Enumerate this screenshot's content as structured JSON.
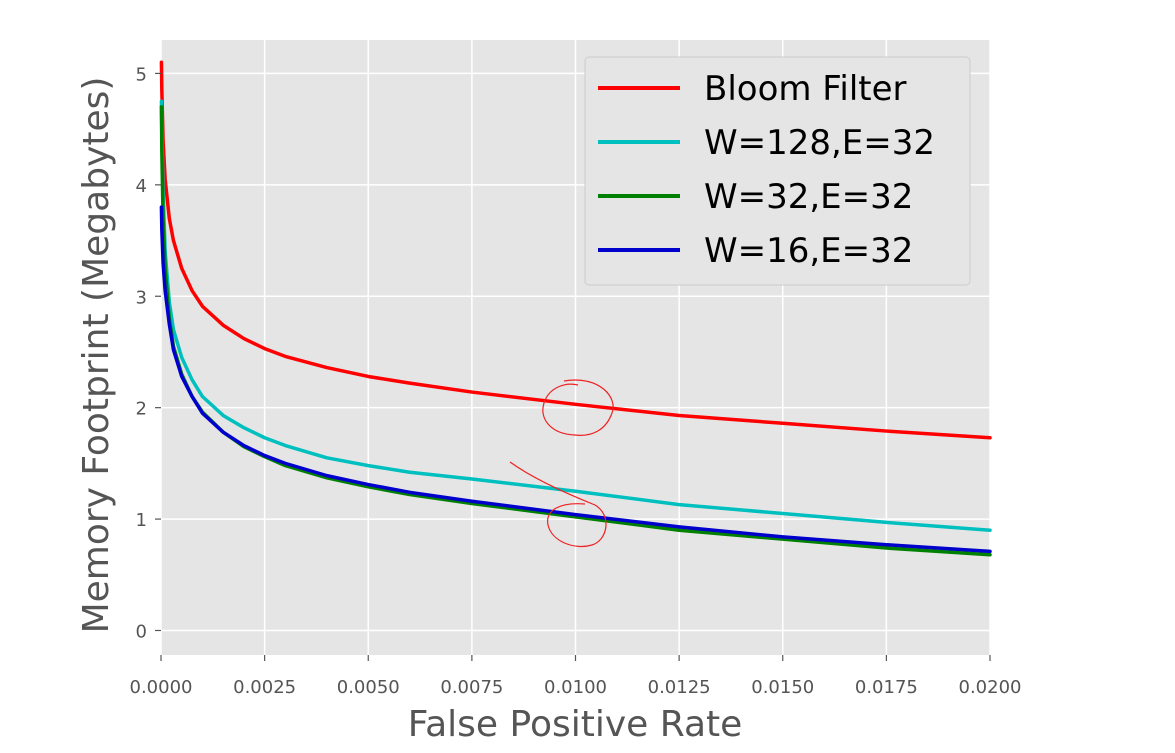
{
  "chart_data": {
    "type": "line",
    "title": "",
    "xlabel": "False Positive Rate",
    "ylabel": "Memory Footprint (Megabytes)",
    "xlim": [
      0.0,
      0.02
    ],
    "ylim": [
      -0.22,
      5.3
    ],
    "x_ticks": [
      "0.0000",
      "0.0025",
      "0.0050",
      "0.0075",
      "0.0100",
      "0.0125",
      "0.0150",
      "0.0175",
      "0.0200"
    ],
    "x_tick_values": [
      0.0,
      0.0025,
      0.005,
      0.0075,
      0.01,
      0.0125,
      0.015,
      0.0175,
      0.02
    ],
    "y_ticks": [
      "0",
      "1",
      "2",
      "3",
      "4",
      "5"
    ],
    "y_tick_values": [
      0,
      1,
      2,
      3,
      4,
      5
    ],
    "grid": true,
    "legend_position": "top-right",
    "x": [
      1e-05,
      2e-05,
      5e-05,
      0.0001,
      0.0002,
      0.0003,
      0.0005,
      0.00075,
      0.001,
      0.0015,
      0.002,
      0.0025,
      0.003,
      0.004,
      0.005,
      0.006,
      0.0075,
      0.01,
      0.0125,
      0.015,
      0.0175,
      0.02
    ],
    "series": [
      {
        "name": "Bloom Filter",
        "color": "#ff0000",
        "values": [
          5.1,
          4.85,
          4.4,
          4.05,
          3.7,
          3.5,
          3.25,
          3.05,
          2.91,
          2.74,
          2.62,
          2.53,
          2.46,
          2.36,
          2.28,
          2.22,
          2.14,
          2.03,
          1.93,
          1.86,
          1.79,
          1.73
        ]
      },
      {
        "name": "W=128,E=32",
        "color": "#00bfbf",
        "values": [
          4.75,
          4.5,
          3.95,
          3.4,
          2.95,
          2.7,
          2.45,
          2.25,
          2.1,
          1.93,
          1.82,
          1.73,
          1.66,
          1.55,
          1.48,
          1.42,
          1.36,
          1.25,
          1.13,
          1.05,
          0.97,
          0.9
        ]
      },
      {
        "name": "W=32,E=32",
        "color": "#008000",
        "values": [
          4.7,
          4.3,
          3.7,
          3.25,
          2.8,
          2.55,
          2.3,
          2.1,
          1.96,
          1.78,
          1.65,
          1.56,
          1.48,
          1.37,
          1.29,
          1.22,
          1.14,
          1.02,
          0.9,
          0.82,
          0.74,
          0.68
        ]
      },
      {
        "name": "W=16,E=32",
        "color": "#0000cc",
        "values": [
          3.8,
          3.6,
          3.3,
          3.05,
          2.75,
          2.52,
          2.28,
          2.1,
          1.95,
          1.78,
          1.66,
          1.57,
          1.5,
          1.39,
          1.31,
          1.24,
          1.16,
          1.04,
          0.93,
          0.84,
          0.77,
          0.71
        ]
      }
    ]
  }
}
